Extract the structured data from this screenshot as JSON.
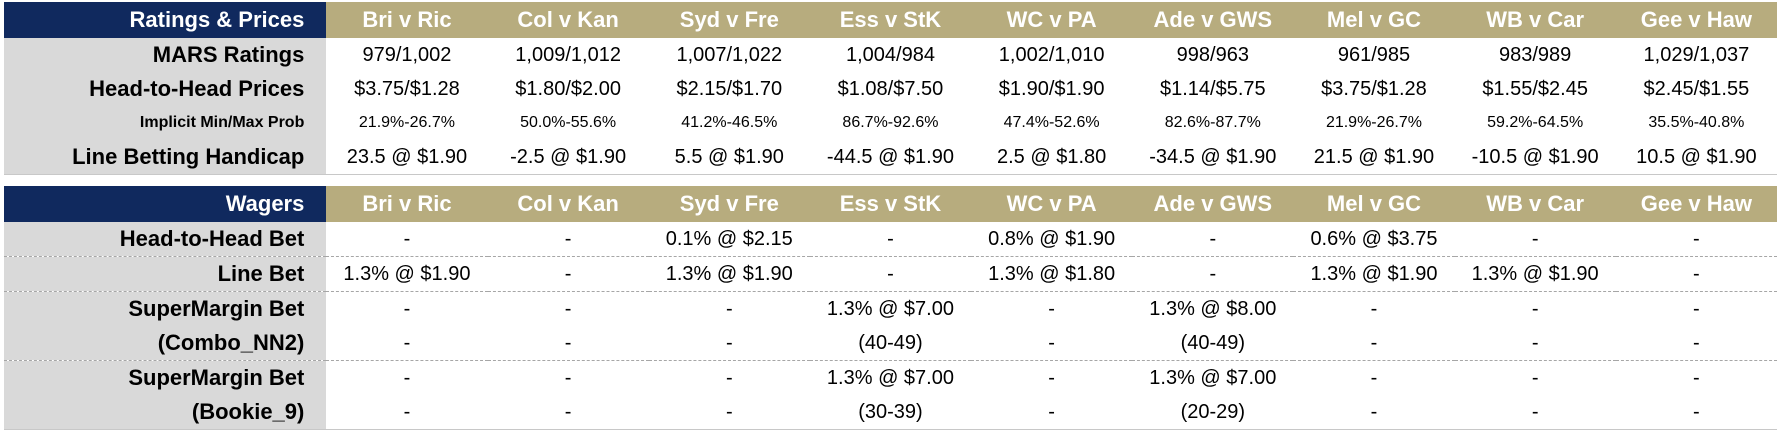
{
  "ratings": {
    "header": "Ratings & Prices",
    "games": [
      "Bri v Ric",
      "Col v Kan",
      "Syd v Fre",
      "Ess v StK",
      "WC v PA",
      "Ade v GWS",
      "Mel v GC",
      "WB v Car",
      "Gee v Haw"
    ],
    "rows": [
      {
        "label": "MARS Ratings",
        "cells": [
          "979/1,002",
          "1,009/1,012",
          "1,007/1,022",
          "1,004/984",
          "1,002/1,010",
          "998/963",
          "961/985",
          "983/989",
          "1,029/1,037"
        ]
      },
      {
        "label": "Head-to-Head Prices",
        "cells": [
          "$3.75/$1.28",
          "$1.80/$2.00",
          "$2.15/$1.70",
          "$1.08/$7.50",
          "$1.90/$1.90",
          "$1.14/$5.75",
          "$3.75/$1.28",
          "$1.55/$2.45",
          "$2.45/$1.55"
        ]
      },
      {
        "label": "Implicit Min/Max Prob",
        "cells": [
          "21.9%-26.7%",
          "50.0%-55.6%",
          "41.2%-46.5%",
          "86.7%-92.6%",
          "47.4%-52.6%",
          "82.6%-87.7%",
          "21.9%-26.7%",
          "59.2%-64.5%",
          "35.5%-40.8%"
        ]
      },
      {
        "label": "Line Betting Handicap",
        "cells": [
          "23.5 @ $1.90",
          "-2.5 @ $1.90",
          "5.5 @ $1.90",
          "-44.5 @ $1.90",
          "2.5 @ $1.80",
          "-34.5 @ $1.90",
          "21.5 @ $1.90",
          "-10.5 @ $1.90",
          "10.5 @ $1.90"
        ]
      }
    ]
  },
  "wagers": {
    "header": "Wagers",
    "games": [
      "Bri v Ric",
      "Col v Kan",
      "Syd v Fre",
      "Ess v StK",
      "WC v PA",
      "Ade v GWS",
      "Mel v GC",
      "WB v Car",
      "Gee v Haw"
    ],
    "rows": [
      {
        "label": "Head-to-Head Bet",
        "cells": [
          "-",
          "-",
          "0.1% @ $2.15",
          "-",
          "0.8% @ $1.90",
          "-",
          "0.6% @ $3.75",
          "-",
          "-"
        ]
      },
      {
        "label": "Line Bet",
        "cells": [
          "1.3% @ $1.90",
          "-",
          "1.3% @ $1.90",
          "-",
          "1.3% @ $1.80",
          "-",
          "1.3% @ $1.90",
          "1.3% @ $1.90",
          "-"
        ]
      },
      {
        "label": "SuperMargin Bet",
        "cells": [
          "-",
          "-",
          "-",
          "1.3% @ $7.00",
          "-",
          "1.3% @ $8.00",
          "-",
          "-",
          "-"
        ]
      },
      {
        "label": "(Combo_NN2)",
        "cells": [
          "-",
          "-",
          "-",
          "(40-49)",
          "-",
          "(40-49)",
          "-",
          "-",
          "-"
        ]
      },
      {
        "label": "SuperMargin Bet",
        "cells": [
          "-",
          "-",
          "-",
          "1.3% @ $7.00",
          "-",
          "1.3% @ $7.00",
          "-",
          "-",
          "-"
        ]
      },
      {
        "label": "(Bookie_9)",
        "cells": [
          "-",
          "-",
          "-",
          "(30-39)",
          "-",
          "(20-29)",
          "-",
          "-",
          "-"
        ]
      }
    ]
  }
}
